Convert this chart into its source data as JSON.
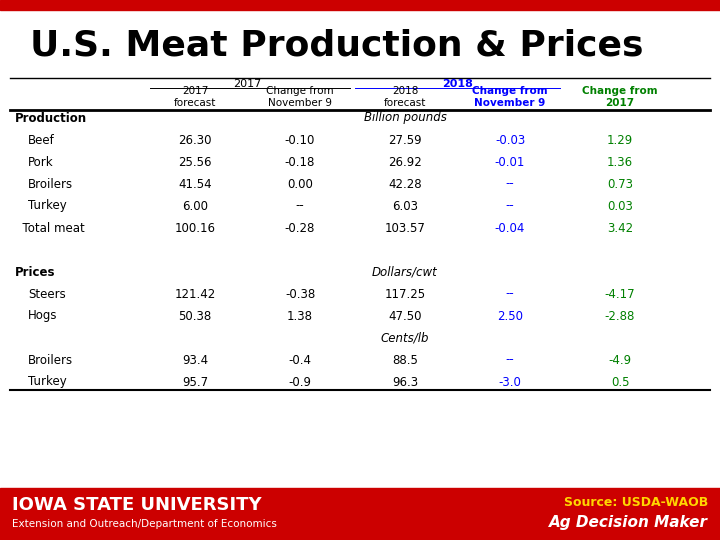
{
  "title": "U.S. Meat Production & Prices",
  "title_color": "#000000",
  "title_fontsize": 26,
  "header_bar_color": "#CC0000",
  "rows": [
    {
      "label": "Production",
      "indent": 0,
      "bold": true,
      "unit_label": "Billion pounds",
      "values": [
        "",
        "",
        "",
        "",
        ""
      ],
      "colors": [
        "black",
        "black",
        "black",
        "black",
        "black"
      ]
    },
    {
      "label": "Beef",
      "indent": 1,
      "bold": false,
      "values": [
        "26.30",
        "-0.10",
        "27.59",
        "-0.03",
        "1.29"
      ],
      "colors": [
        "black",
        "black",
        "black",
        "blue",
        "green"
      ]
    },
    {
      "label": "Pork",
      "indent": 1,
      "bold": false,
      "values": [
        "25.56",
        "-0.18",
        "26.92",
        "-0.01",
        "1.36"
      ],
      "colors": [
        "black",
        "black",
        "black",
        "blue",
        "green"
      ]
    },
    {
      "label": "Broilers",
      "indent": 1,
      "bold": false,
      "values": [
        "41.54",
        "0.00",
        "42.28",
        "--",
        "0.73"
      ],
      "colors": [
        "black",
        "black",
        "black",
        "blue",
        "green"
      ]
    },
    {
      "label": "Turkey",
      "indent": 1,
      "bold": false,
      "values": [
        "6.00",
        "--",
        "6.03",
        "--",
        "0.03"
      ],
      "colors": [
        "black",
        "black",
        "black",
        "blue",
        "green"
      ]
    },
    {
      "label": "  Total meat",
      "indent": 0,
      "bold": false,
      "values": [
        "100.16",
        "-0.28",
        "103.57",
        "-0.04",
        "3.42"
      ],
      "colors": [
        "black",
        "black",
        "black",
        "blue",
        "green"
      ]
    },
    {
      "label": "",
      "indent": 0,
      "bold": false,
      "unit_label": "",
      "values": [
        "",
        "",
        "",
        "",
        ""
      ],
      "colors": [
        "black",
        "black",
        "black",
        "black",
        "black"
      ]
    },
    {
      "label": "Prices",
      "indent": 0,
      "bold": true,
      "unit_label": "Dollars/cwt",
      "values": [
        "",
        "",
        "",
        "",
        ""
      ],
      "colors": [
        "black",
        "black",
        "black",
        "black",
        "black"
      ]
    },
    {
      "label": "Steers",
      "indent": 1,
      "bold": false,
      "values": [
        "121.42",
        "-0.38",
        "117.25",
        "--",
        "-4.17"
      ],
      "colors": [
        "black",
        "black",
        "black",
        "blue",
        "green"
      ]
    },
    {
      "label": "Hogs",
      "indent": 1,
      "bold": false,
      "values": [
        "50.38",
        "1.38",
        "47.50",
        "2.50",
        "-2.88"
      ],
      "colors": [
        "black",
        "black",
        "black",
        "blue",
        "green"
      ]
    },
    {
      "label": "",
      "indent": 0,
      "bold": false,
      "unit_label": "Cents/lb",
      "values": [
        "",
        "",
        "",
        "",
        ""
      ],
      "colors": [
        "black",
        "black",
        "black",
        "black",
        "black"
      ]
    },
    {
      "label": "Broilers",
      "indent": 1,
      "bold": false,
      "values": [
        "93.4",
        "-0.4",
        "88.5",
        "--",
        "-4.9"
      ],
      "colors": [
        "black",
        "black",
        "black",
        "blue",
        "green"
      ]
    },
    {
      "label": "Turkey",
      "indent": 1,
      "bold": false,
      "values": [
        "95.7",
        "-0.9",
        "96.3",
        "-3.0",
        "0.5"
      ],
      "colors": [
        "black",
        "black",
        "black",
        "blue",
        "green"
      ]
    }
  ],
  "footer_text_left1": "Iowa State University",
  "footer_text_left2": "Extension and Outreach/Department of Economics",
  "footer_text_right1": "Source: USDA-WAOB",
  "footer_text_right2": "Ag Decision Maker",
  "footer_color": "#CC0000",
  "footer_text_color": "#FFFFFF",
  "footer_source_color": "#FFD700",
  "bg_color": "#FFFFFF"
}
